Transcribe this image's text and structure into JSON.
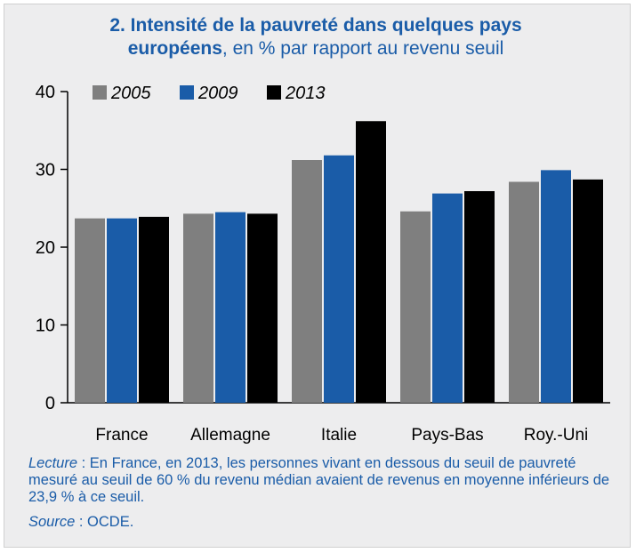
{
  "title": {
    "line1": "2. Intensité de la pauvreté dans quelques pays",
    "line2_bold": "européens",
    "line2_rest": ", en % par rapport au revenu seuil"
  },
  "chart_data": {
    "type": "bar",
    "categories": [
      "France",
      "Allemagne",
      "Italie",
      "Pays-Bas",
      "Roy.-Uni"
    ],
    "series": [
      {
        "name": "2005",
        "color": "#7f7f7f",
        "values": [
          23.7,
          24.3,
          31.2,
          24.6,
          28.4
        ]
      },
      {
        "name": "2009",
        "color": "#1a5ca8",
        "values": [
          23.7,
          24.5,
          31.8,
          26.9,
          29.9
        ]
      },
      {
        "name": "2013",
        "color": "#000000",
        "values": [
          23.9,
          24.3,
          36.2,
          27.2,
          28.7
        ]
      }
    ],
    "ylim": [
      0,
      40
    ],
    "yticks": [
      "0",
      "10",
      "20",
      "30",
      "40"
    ],
    "legend_position": "top-left"
  },
  "caption": {
    "label": "Lecture",
    "text": " : En France, en 2013, les personnes vivant en dessous du seuil de pauvreté mesuré au seuil de 60 % du revenu médian avaient de revenus en moyenne inférieurs de 23,9 % à ce seuil."
  },
  "source": {
    "label": "Source",
    "text": " : OCDE."
  }
}
